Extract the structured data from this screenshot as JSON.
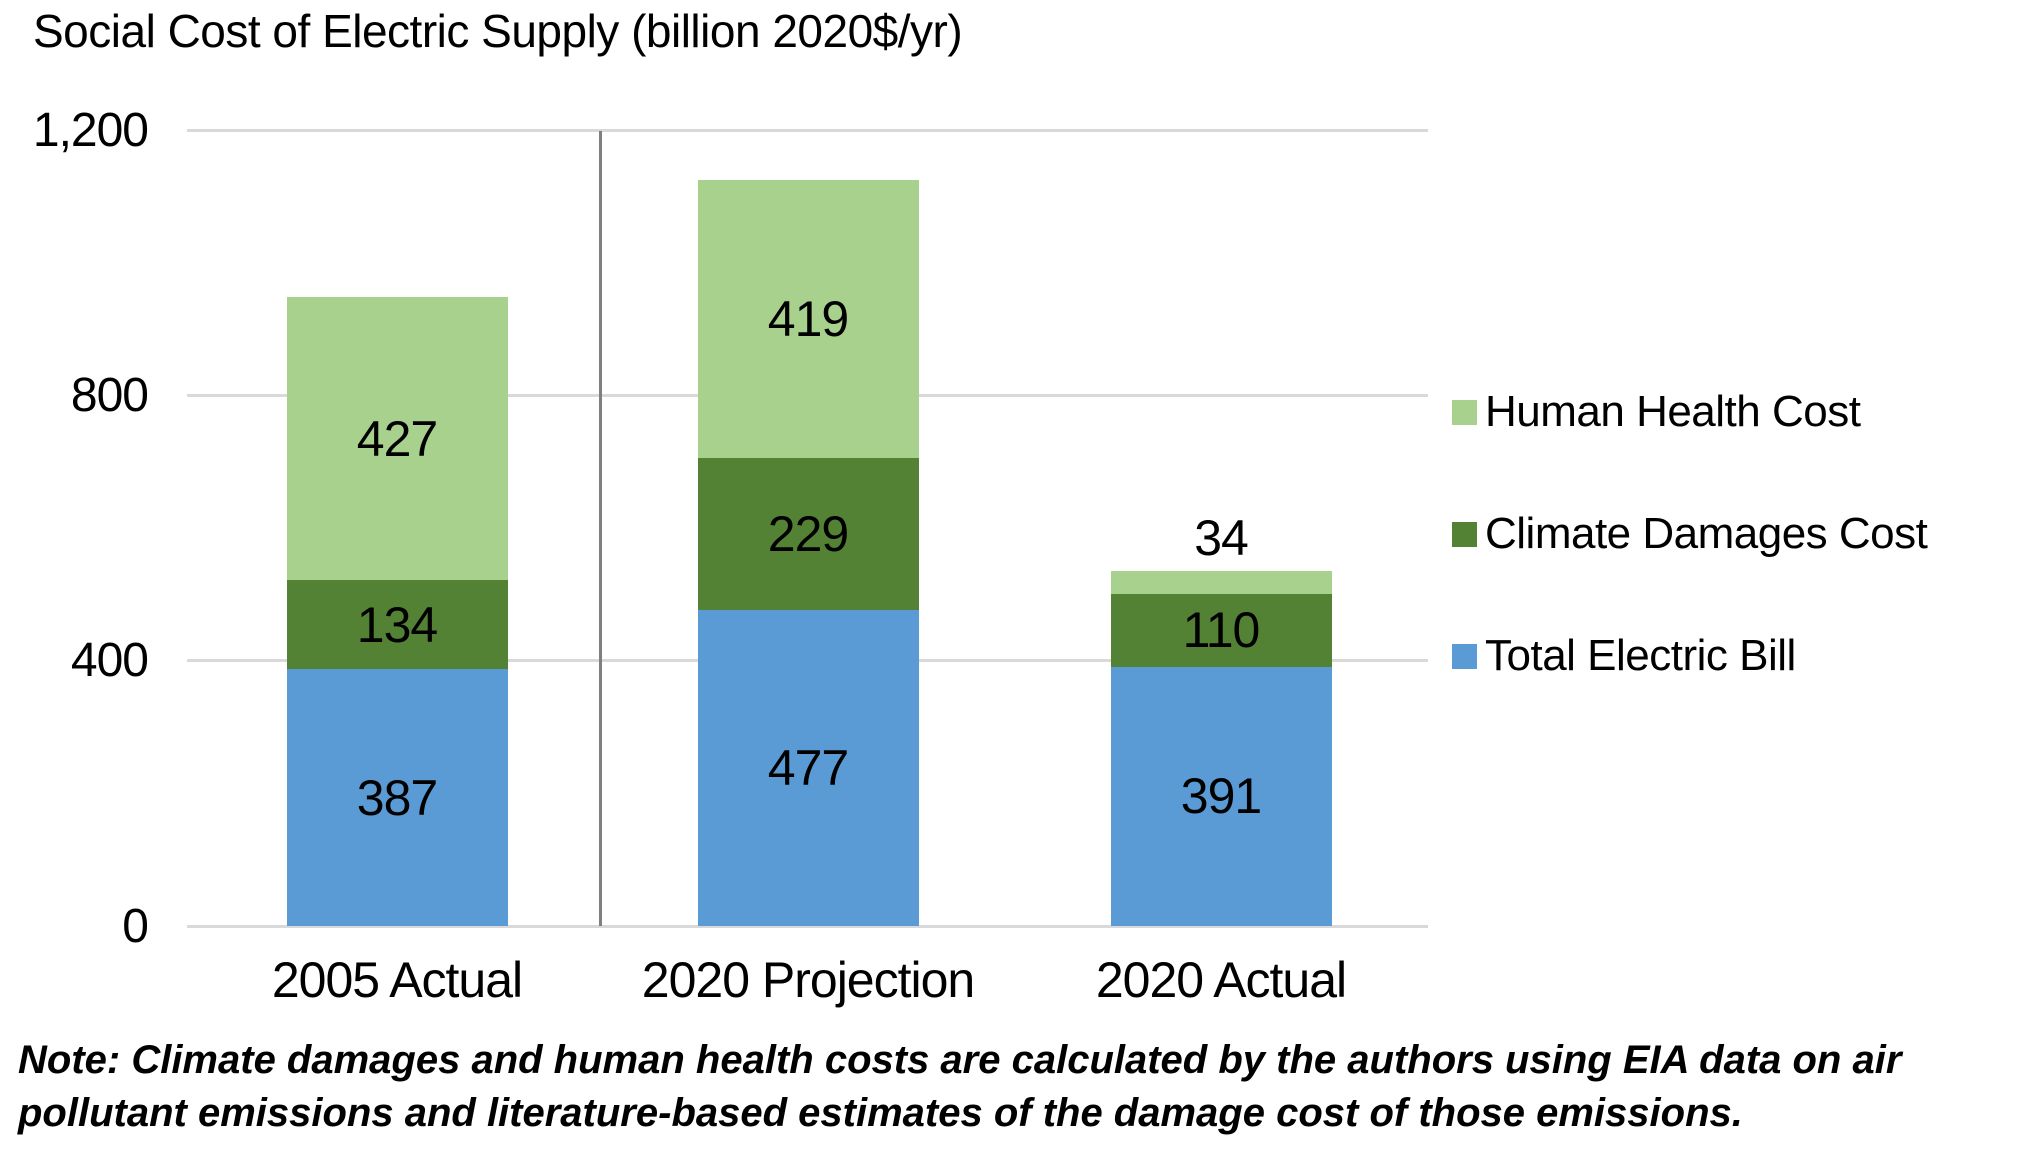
{
  "title": "Social Cost of Electric Supply (billion 2020$/yr)",
  "note": "Note: Climate damages and human health costs are calculated by the authors using EIA data on air pollutant emissions and literature-based estimates of the damage cost of those emissions.",
  "colors": {
    "human_health": "#A9D18E",
    "climate_damages": "#548235",
    "electric_bill": "#5B9BD5",
    "gridline": "#D9D9D9",
    "divider": "#7F7F7F",
    "text": "#000000"
  },
  "legend": [
    {
      "label": "Human Health Cost",
      "color": "#A9D18E"
    },
    {
      "label": "Climate Damages Cost",
      "color": "#548235"
    },
    {
      "label": "Total Electric Bill",
      "color": "#5B9BD5"
    }
  ],
  "chart_data": {
    "type": "bar",
    "stacked": true,
    "title": "Social Cost of Electric Supply (billion 2020$/yr)",
    "categories": [
      "2005 Actual",
      "2020 Projection",
      "2020 Actual"
    ],
    "series": [
      {
        "name": "Total Electric Bill",
        "color": "#5B9BD5",
        "values": [
          387,
          477,
          391
        ]
      },
      {
        "name": "Climate Damages Cost",
        "color": "#548235",
        "values": [
          134,
          229,
          110
        ]
      },
      {
        "name": "Human Health Cost",
        "color": "#A9D18E",
        "values": [
          427,
          419,
          34
        ]
      }
    ],
    "totals": [
      948,
      1125,
      535
    ],
    "ylim": [
      0,
      1200
    ],
    "y_ticks": [
      0,
      400,
      800,
      1200
    ],
    "y_tick_labels": [
      "0",
      "400",
      "800",
      "1,200"
    ],
    "grid": true,
    "legend_position": "right",
    "divider_after_category": 0
  }
}
